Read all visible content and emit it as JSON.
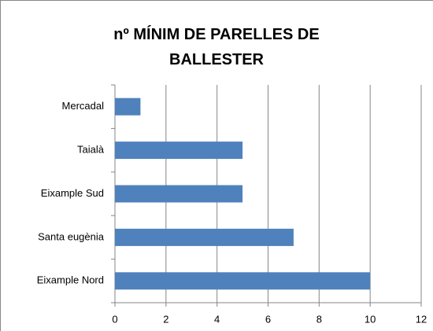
{
  "chart_data": {
    "type": "hbar",
    "title": "nº MÍNIM DE PARELLES DE BALLESTER",
    "categories": [
      "Mercadal",
      "Taialà",
      "Eixample Sud",
      "Santa eugènia",
      "Eixample Nord"
    ],
    "values": [
      1,
      5,
      5,
      7,
      10
    ],
    "color": "#4f81bd",
    "xlim": [
      0,
      12
    ],
    "xticks": [
      0,
      2,
      4,
      6,
      8,
      10,
      12
    ],
    "grid": true
  }
}
